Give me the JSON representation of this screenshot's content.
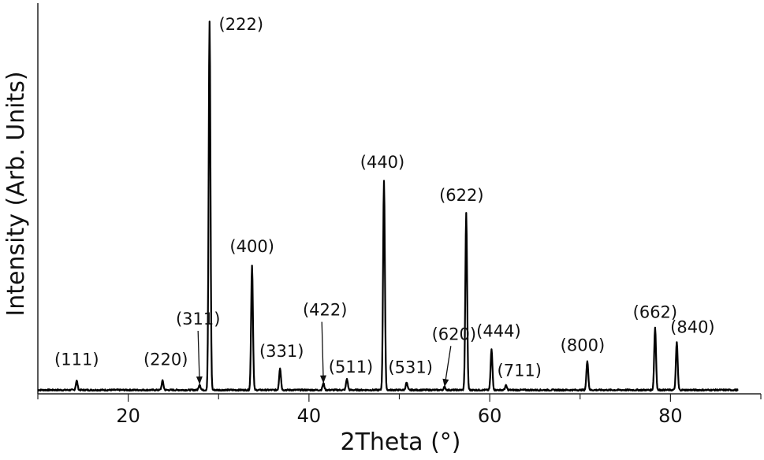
{
  "chart_data": {
    "type": "line",
    "title": "",
    "xlabel": "2Theta (°)",
    "ylabel": "Intensity (Arb. Units)",
    "xlim": [
      10,
      90
    ],
    "ylim": [
      0,
      1
    ],
    "xticks": [
      20,
      40,
      60,
      80
    ],
    "ytick_labels_shown": false,
    "grid": false,
    "series": [
      {
        "peaks": [
          {
            "hkl": "(111)",
            "x": 14.3,
            "y": 0.025
          },
          {
            "hkl": "(220)",
            "x": 23.8,
            "y": 0.025
          },
          {
            "hkl": "(311)",
            "x": 27.9,
            "y": 0.015
          },
          {
            "hkl": "(222)",
            "x": 29.0,
            "y": 1.0
          },
          {
            "hkl": "(400)",
            "x": 33.7,
            "y": 0.34
          },
          {
            "hkl": "(331)",
            "x": 36.8,
            "y": 0.06
          },
          {
            "hkl": "(422)",
            "x": 41.6,
            "y": 0.018
          },
          {
            "hkl": "(511)",
            "x": 44.2,
            "y": 0.03
          },
          {
            "hkl": "(440)",
            "x": 48.3,
            "y": 0.57
          },
          {
            "hkl": "(531)",
            "x": 50.8,
            "y": 0.02
          },
          {
            "hkl": "(620)",
            "x": 55.0,
            "y": 0.008
          },
          {
            "hkl": "(622)",
            "x": 57.4,
            "y": 0.48
          },
          {
            "hkl": "(444)",
            "x": 60.2,
            "y": 0.11
          },
          {
            "hkl": "(711)",
            "x": 61.8,
            "y": 0.012
          },
          {
            "hkl": "(800)",
            "x": 70.8,
            "y": 0.08
          },
          {
            "hkl": "(662)",
            "x": 78.3,
            "y": 0.17
          },
          {
            "hkl": "(840)",
            "x": 80.7,
            "y": 0.13
          }
        ]
      }
    ],
    "annotations": [
      "(111)",
      "(220)",
      "(311)",
      "(222)",
      "(400)",
      "(331)",
      "(422)",
      "(511)",
      "(440)",
      "(531)",
      "(620)",
      "(622)",
      "(444)",
      "(711)",
      "(800)",
      "(662)",
      "(840)"
    ],
    "arrows_on": [
      "(311)",
      "(422)",
      "(620)"
    ]
  }
}
